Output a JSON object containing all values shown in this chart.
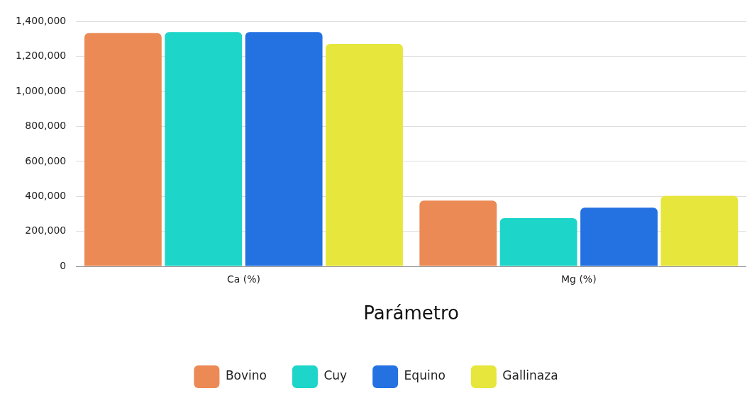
{
  "chart_data": {
    "type": "bar",
    "xlabel": "Parámetro",
    "categories": [
      "Ca (%)",
      "Mg (%)"
    ],
    "series": [
      {
        "name": "Bovino",
        "color": "#eb8a55",
        "values": [
          1334000,
          376000
        ]
      },
      {
        "name": "Cuy",
        "color": "#1dd5c9",
        "values": [
          1340000,
          275000
        ]
      },
      {
        "name": "Equino",
        "color": "#2471e2",
        "values": [
          1340000,
          335000
        ]
      },
      {
        "name": "Gallinaza",
        "color": "#e7e63c",
        "values": [
          1272000,
          403000
        ]
      }
    ],
    "ylim": [
      0,
      1400000
    ],
    "yticks": [
      0,
      {
        "value": 200000,
        "label": "200,000"
      },
      {
        "value": 400000,
        "label": "400,000"
      },
      {
        "value": 600000,
        "label": "600,000"
      },
      {
        "value": 800000,
        "label": "800,000"
      },
      {
        "value": 1000000,
        "label": "1,000,000"
      },
      {
        "value": 1200000,
        "label": "1,200,000"
      },
      {
        "value": 1400000,
        "label": "1,400,000"
      }
    ],
    "grid": "y",
    "legend": "bottom"
  }
}
